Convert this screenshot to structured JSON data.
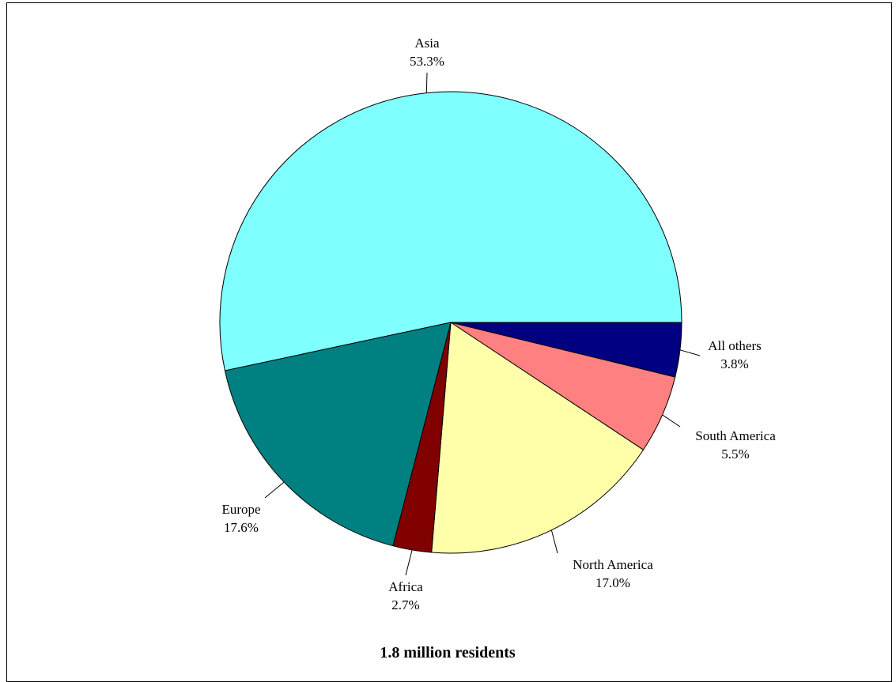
{
  "chart_data": {
    "type": "pie",
    "subtitle": "1.8 million residents",
    "slices": [
      {
        "label": "Asia",
        "value": 53.3,
        "pct_text": "53.3%",
        "color": "#80ffff"
      },
      {
        "label": "All others",
        "value": 3.8,
        "pct_text": "3.8%",
        "color": "#000080"
      },
      {
        "label": "South America",
        "value": 5.5,
        "pct_text": "5.5%",
        "color": "#ff8080"
      },
      {
        "label": "North America",
        "value": 17.0,
        "pct_text": "17.0%",
        "color": "#ffffaa"
      },
      {
        "label": "Africa",
        "value": 2.7,
        "pct_text": "2.7%",
        "color": "#800000"
      },
      {
        "label": "Europe",
        "value": 17.6,
        "pct_text": "17.6%",
        "color": "#008080"
      }
    ]
  }
}
